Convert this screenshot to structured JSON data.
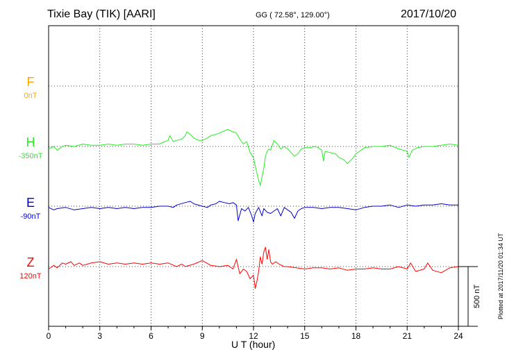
{
  "header": {
    "station": "Tixie Bay (TIK)  [AARI]",
    "coords": "GG ( 72.58°, 129.00°)",
    "date": "2017/10/20"
  },
  "footer": {
    "plotted": "Plotted at 2017/11/20 01:34 UT"
  },
  "scale": {
    "label": "500 nT",
    "value_nT": 500
  },
  "chart_data": {
    "type": "line",
    "xlabel": "U T (hour)",
    "ylabel": "",
    "xlim": [
      0,
      24
    ],
    "xticks": [
      0,
      3,
      6,
      9,
      12,
      15,
      18,
      21,
      24
    ],
    "grid": true,
    "series": [
      {
        "name": "F",
        "baseline_label": "0nT",
        "color": "#ffa500",
        "x": [],
        "y": []
      },
      {
        "name": "H",
        "baseline_label": "-350nT",
        "color": "#22ee22",
        "x": [
          0,
          0.3,
          0.5,
          0.8,
          1.0,
          1.5,
          2.0,
          2.5,
          3.0,
          3.5,
          4.0,
          4.5,
          5.0,
          5.5,
          6.0,
          6.5,
          6.8,
          7.0,
          7.1,
          7.3,
          7.5,
          7.8,
          8.0,
          8.1,
          8.3,
          8.5,
          8.8,
          9.0,
          9.3,
          9.5,
          9.8,
          10.0,
          10.3,
          10.5,
          10.8,
          11.0,
          11.2,
          11.4,
          11.6,
          11.8,
          12.0,
          12.1,
          12.2,
          12.3,
          12.4,
          12.5,
          12.6,
          12.7,
          12.8,
          12.9,
          13.0,
          13.2,
          13.4,
          13.6,
          13.8,
          14.0,
          14.2,
          14.4,
          14.6,
          14.8,
          15.0,
          15.3,
          15.6,
          15.8,
          16.0,
          16.1,
          16.2,
          16.5,
          16.8,
          17.0,
          17.3,
          17.5,
          17.8,
          18.0,
          18.5,
          19.0,
          19.5,
          20.0,
          20.5,
          21.0,
          21.1,
          21.3,
          21.6,
          22.0,
          22.5,
          23.0,
          23.5,
          24.0
        ],
        "y": [
          -10,
          0,
          -15,
          0,
          5,
          0,
          10,
          5,
          5,
          10,
          5,
          10,
          10,
          5,
          10,
          10,
          20,
          25,
          45,
          20,
          25,
          30,
          45,
          60,
          50,
          35,
          25,
          25,
          35,
          45,
          50,
          55,
          65,
          70,
          60,
          55,
          30,
          10,
          20,
          -25,
          -45,
          -80,
          -110,
          -140,
          -160,
          -125,
          -90,
          -40,
          -20,
          -10,
          -15,
          25,
          10,
          -10,
          0,
          -10,
          -25,
          -40,
          -30,
          -10,
          -5,
          -5,
          0,
          -5,
          -15,
          -60,
          -20,
          -25,
          -30,
          -45,
          -55,
          -70,
          -50,
          -30,
          -5,
          0,
          0,
          5,
          -10,
          -20,
          -45,
          -15,
          -5,
          0,
          0,
          5,
          10,
          5
        ]
      },
      {
        "name": "E",
        "baseline_label": "-90nT",
        "color": "#0000cc",
        "x": [
          0,
          0.3,
          0.5,
          1.0,
          1.5,
          2.0,
          2.5,
          3.0,
          3.5,
          4.0,
          4.5,
          5.0,
          5.5,
          6.0,
          6.5,
          7.0,
          7.3,
          7.5,
          8.0,
          8.3,
          8.5,
          9.0,
          9.3,
          9.5,
          9.8,
          10.0,
          10.3,
          10.6,
          10.8,
          11.0,
          11.1,
          11.3,
          11.5,
          11.7,
          11.9,
          12.0,
          12.1,
          12.3,
          12.5,
          12.6,
          12.8,
          13.0,
          13.2,
          13.4,
          13.6,
          13.8,
          14.0,
          14.2,
          14.4,
          14.6,
          14.8,
          15.0,
          15.5,
          16.0,
          16.5,
          17.0,
          17.5,
          18.0,
          18.5,
          19.0,
          19.5,
          20.0,
          20.5,
          21.0,
          21.5,
          22.0,
          22.5,
          23.0,
          23.5,
          24.0
        ],
        "y": [
          -5,
          -15,
          -10,
          -5,
          -15,
          -10,
          -5,
          -10,
          -5,
          -10,
          -5,
          -10,
          -5,
          -5,
          0,
          0,
          -5,
          5,
          15,
          20,
          10,
          0,
          -5,
          5,
          10,
          20,
          15,
          10,
          15,
          5,
          -60,
          -10,
          -20,
          -5,
          -40,
          -65,
          -30,
          -5,
          -40,
          -10,
          -25,
          -30,
          -20,
          -10,
          -40,
          -5,
          -15,
          -25,
          -50,
          -20,
          -10,
          -5,
          -5,
          -10,
          -5,
          -5,
          -10,
          -15,
          -5,
          0,
          0,
          5,
          -5,
          5,
          0,
          5,
          5,
          10,
          5,
          5
        ]
      },
      {
        "name": "Z",
        "baseline_label": "120nT",
        "color": "#ff0000",
        "x": [
          0,
          0.3,
          0.5,
          0.8,
          1.0,
          1.3,
          1.5,
          1.8,
          2.0,
          2.5,
          3.0,
          3.5,
          4.0,
          4.5,
          5.0,
          5.5,
          6.0,
          6.5,
          7.0,
          7.5,
          7.8,
          8.0,
          8.5,
          9.0,
          9.5,
          10.0,
          10.5,
          10.8,
          11.0,
          11.2,
          11.4,
          11.6,
          11.8,
          12.0,
          12.1,
          12.2,
          12.3,
          12.4,
          12.5,
          12.6,
          12.7,
          12.8,
          12.9,
          13.0,
          13.1,
          13.3,
          13.5,
          13.8,
          14.0,
          14.5,
          15.0,
          15.5,
          16.0,
          16.5,
          17.0,
          17.5,
          18.0,
          18.5,
          19.0,
          19.5,
          20.0,
          20.5,
          21.0,
          21.2,
          21.5,
          22.0,
          22.2,
          22.5,
          23.0,
          23.5,
          24.0
        ],
        "y": [
          -10,
          5,
          -5,
          15,
          10,
          20,
          5,
          15,
          5,
          15,
          20,
          10,
          15,
          10,
          15,
          10,
          15,
          10,
          15,
          0,
          10,
          0,
          10,
          25,
          5,
          0,
          5,
          -10,
          30,
          -30,
          -10,
          -20,
          -50,
          -35,
          -90,
          -60,
          -20,
          40,
          10,
          60,
          80,
          30,
          70,
          20,
          10,
          20,
          10,
          0,
          0,
          -5,
          -10,
          -5,
          -5,
          -10,
          -5,
          -15,
          -10,
          -10,
          -5,
          -10,
          -10,
          0,
          -10,
          15,
          -20,
          -10,
          15,
          -15,
          -25,
          -5,
          0
        ]
      }
    ]
  }
}
